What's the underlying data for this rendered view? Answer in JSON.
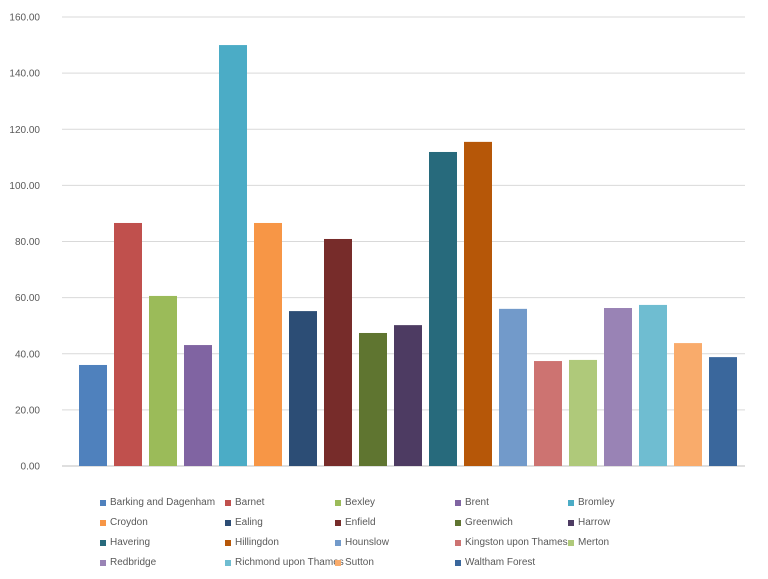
{
  "chart_data": {
    "type": "bar",
    "title": "",
    "xlabel": "",
    "ylabel": "",
    "ylim": [
      0,
      160
    ],
    "yticks": [
      "0.00",
      "20.00",
      "40.00",
      "60.00",
      "80.00",
      "100.00",
      "120.00",
      "140.00",
      "160.00"
    ],
    "grid": true,
    "legend_position": "bottom",
    "series": [
      {
        "name": "Barking and Dagenham",
        "value": 36.0,
        "color": "#4f81bd"
      },
      {
        "name": "Barnet",
        "value": 86.6,
        "color": "#c0504d"
      },
      {
        "name": "Bexley",
        "value": 60.6,
        "color": "#9bbb59"
      },
      {
        "name": "Brent",
        "value": 43.1,
        "color": "#8064a2"
      },
      {
        "name": "Bromley",
        "value": 150.0,
        "color": "#4bacc6"
      },
      {
        "name": "Croydon",
        "value": 86.6,
        "color": "#f79646"
      },
      {
        "name": "Ealing",
        "value": 55.2,
        "color": "#2c4d75"
      },
      {
        "name": "Enfield",
        "value": 80.9,
        "color": "#772c2a"
      },
      {
        "name": "Greenwich",
        "value": 47.4,
        "color": "#5f7530"
      },
      {
        "name": "Harrow",
        "value": 50.2,
        "color": "#4d3b62"
      },
      {
        "name": "Havering",
        "value": 111.9,
        "color": "#276a7c"
      },
      {
        "name": "Hillingdon",
        "value": 115.5,
        "color": "#b65708"
      },
      {
        "name": "Hounslow",
        "value": 56.0,
        "color": "#729aca"
      },
      {
        "name": "Kingston upon Thames",
        "value": 37.4,
        "color": "#cd7371"
      },
      {
        "name": "Merton",
        "value": 37.8,
        "color": "#afc97a"
      },
      {
        "name": "Redbridge",
        "value": 56.3,
        "color": "#9983b5"
      },
      {
        "name": "Richmond upon Thames",
        "value": 57.4,
        "color": "#6fbdd1"
      },
      {
        "name": "Sutton",
        "value": 43.8,
        "color": "#f9ab6b"
      },
      {
        "name": "Waltham Forest",
        "value": 38.8,
        "color": "#3a679c"
      }
    ]
  }
}
